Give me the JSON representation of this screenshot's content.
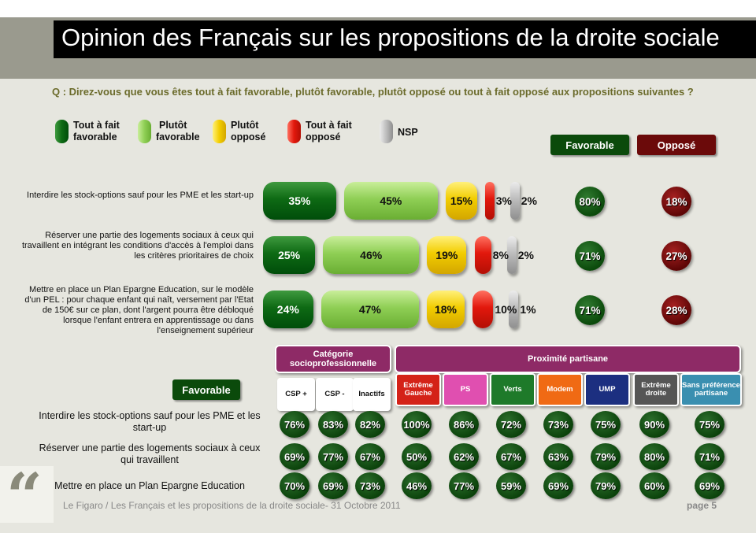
{
  "title": "Opinion des Français sur les propositions de la droite sociale",
  "question": "Q : Direz-vous que vous êtes tout à fait favorable, plutôt favorable, plutôt opposé ou tout à fait opposé aux propositions suivantes ?",
  "legend": [
    {
      "label1": "Tout à fait",
      "label2": "favorable",
      "color": "#0e6a14"
    },
    {
      "label1": "Plutôt",
      "label2": "favorable",
      "color": "#8fcf55"
    },
    {
      "label1": "Plutôt",
      "label2": "opposé",
      "color": "#f2cd00"
    },
    {
      "label1": "Tout à fait",
      "label2": "opposé",
      "color": "#e2180c"
    },
    {
      "label1": "NSP",
      "label2": "",
      "color": "#bdbdbd"
    }
  ],
  "headers": {
    "favorable": "Favorable",
    "oppose": "Opposé"
  },
  "chart_data": [
    {
      "type": "bar",
      "series": [
        {
          "name": "Tout à fait favorable",
          "values": [
            35,
            25,
            24
          ]
        },
        {
          "name": "Plutôt favorable",
          "values": [
            45,
            46,
            47
          ]
        },
        {
          "name": "Plutôt opposé",
          "values": [
            15,
            19,
            18
          ]
        },
        {
          "name": "Tout à fait opposé",
          "values": [
            3,
            8,
            10
          ]
        },
        {
          "name": "NSP",
          "values": [
            2,
            2,
            1
          ]
        }
      ],
      "categories": [
        "Interdire les stock-options sauf pour les PME et les start-up",
        "Réserver une partie des logements sociaux à ceux qui travaillent en intégrant les conditions d'accès à l'emploi dans les critères prioritaires de choix",
        "Mettre en place un Plan Epargne Education, sur le modèle d'un PEL : pour chaque enfant qui naît, versement par l'Etat de 150€ sur ce plan, dont l'argent pourra être débloqué lorsque l'enfant entrera en apprentissage ou dans l'enseignement supérieur"
      ],
      "totals": {
        "Favorable": [
          80,
          71,
          71
        ],
        "Opposé": [
          18,
          27,
          28
        ]
      }
    },
    {
      "type": "table",
      "row_header": "Favorable",
      "groups": [
        {
          "label": "Catégorie socioprofessionnelle",
          "columns": [
            "CSP +",
            "CSP -",
            "Inactifs"
          ]
        },
        {
          "label": "Proximité partisane",
          "columns": [
            "Extrême Gauche",
            "PS",
            "Verts",
            "Modem",
            "UMP",
            "Extrême droite",
            "Sans préférence partisane"
          ]
        }
      ],
      "rows": [
        {
          "label": "Interdire les stock-options sauf pour les PME et les start-up",
          "values": [
            76,
            83,
            82,
            100,
            86,
            72,
            73,
            75,
            90,
            75
          ]
        },
        {
          "label": "Réserver une partie des logements sociaux à ceux qui travaillent",
          "values": [
            69,
            77,
            67,
            50,
            62,
            67,
            63,
            79,
            80,
            71
          ]
        },
        {
          "label": "Mettre en place un Plan Epargne Education",
          "values": [
            70,
            69,
            73,
            46,
            77,
            59,
            69,
            79,
            60,
            69
          ]
        }
      ]
    }
  ],
  "columns_style": [
    {
      "bg": "#ffffff",
      "fg": "#111111"
    },
    {
      "bg": "#ffffff",
      "fg": "#111111"
    },
    {
      "bg": "#ffffff",
      "fg": "#111111"
    },
    {
      "bg": "#d42218",
      "fg": "#ffffff"
    },
    {
      "bg": "#e04fb0",
      "fg": "#ffffff"
    },
    {
      "bg": "#1e7a2a",
      "fg": "#ffffff"
    },
    {
      "bg": "#f06a14",
      "fg": "#ffffff"
    },
    {
      "bg": "#1c2f80",
      "fg": "#ffffff"
    },
    {
      "bg": "#555555",
      "fg": "#ffffff"
    },
    {
      "bg": "#3a8fb0",
      "fg": "#ffffff"
    }
  ],
  "footer": "Le Figaro / Les Français et les propositions de la droite sociale- 31 Octobre 2011",
  "page": "page 5",
  "colors": {
    "favorable": "#0b4a0b",
    "oppose": "#6b0a0a",
    "group_header": "#8e2a66"
  }
}
